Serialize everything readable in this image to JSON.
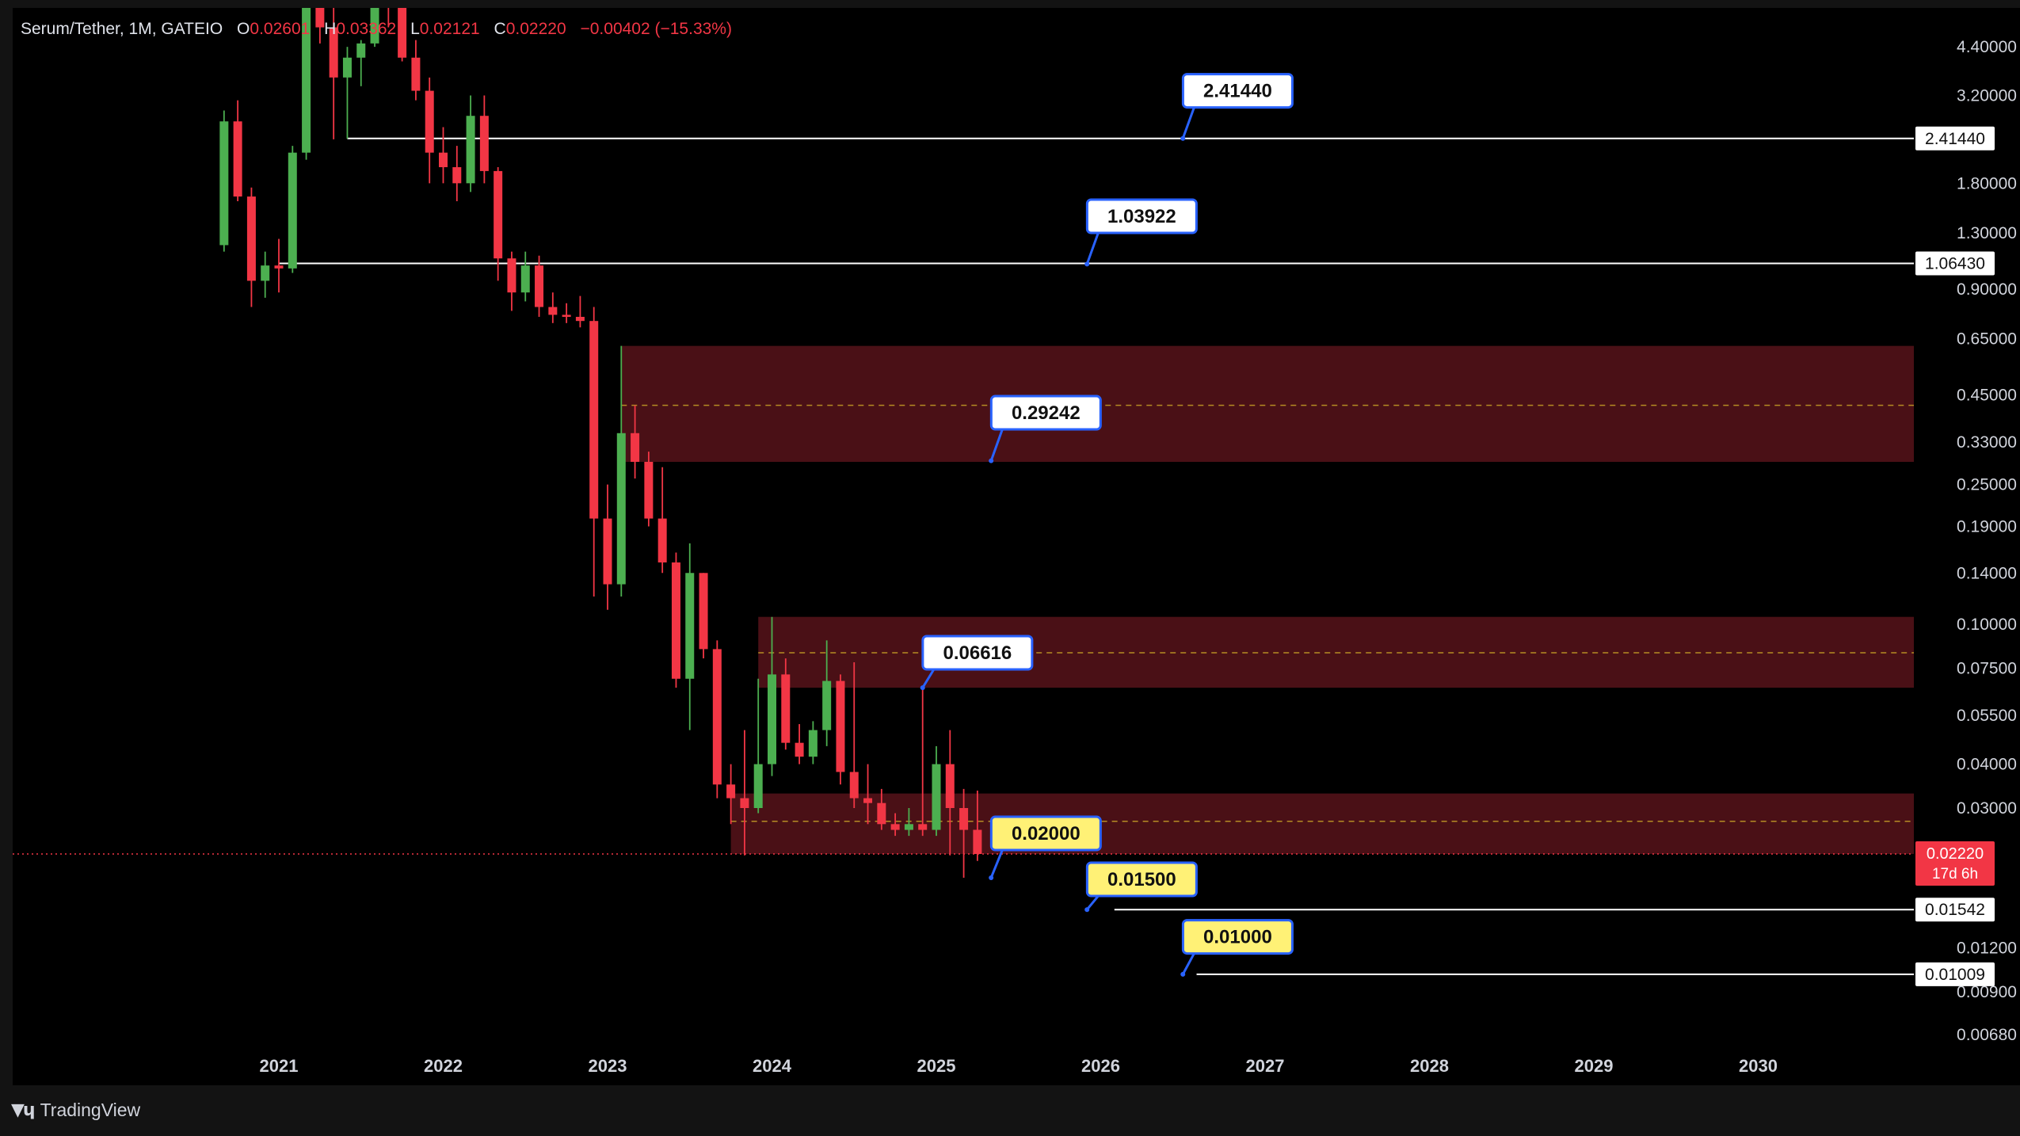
{
  "legend": {
    "symbol": "Serum/Tether, 1M, GATEIO",
    "o_label": "O",
    "o_value": "0.02601",
    "h_label": "H",
    "h_value": "0.03362",
    "l_label": "L",
    "l_value": "0.02121",
    "c_label": "C",
    "c_value": "0.02220",
    "change": "−0.00402 (−15.33%)"
  },
  "brand": {
    "name": "TradingView",
    "logo_icon": "tradingview-logo-icon"
  },
  "colors": {
    "up": "#4caf50",
    "down": "#f23645",
    "zone": "#4a1016",
    "zone_mid": "#c9a227",
    "callout_white": "#ffffff",
    "callout_yellow": "#fff176",
    "callout_border": "#2962ff"
  },
  "chart_data": {
    "type": "candlestick",
    "title": "Serum/Tether, 1M, GATEIO",
    "y_scale": "log",
    "ylim": [
      0.0055,
      4.6
    ],
    "y_ticks": [
      "4.40000",
      "3.20000",
      "1.80000",
      "1.30000",
      "0.90000",
      "0.65000",
      "0.45000",
      "0.33000",
      "0.25000",
      "0.19000",
      "0.14000",
      "0.10000",
      "0.07500",
      "0.05500",
      "0.04000",
      "0.03000",
      "0.01200",
      "0.00900",
      "0.00680"
    ],
    "x_ticks": [
      "2021",
      "2022",
      "2023",
      "2024",
      "2025",
      "2026",
      "2027",
      "2028",
      "2029",
      "2030"
    ],
    "x_range": [
      "2020-09",
      "2030-12"
    ],
    "candles": [
      {
        "t": "2020-09",
        "o": 1.2,
        "h": 2.9,
        "l": 1.15,
        "c": 2.7
      },
      {
        "t": "2020-10",
        "o": 2.7,
        "h": 3.1,
        "l": 1.6,
        "c": 1.65
      },
      {
        "t": "2020-11",
        "o": 1.65,
        "h": 1.75,
        "l": 0.8,
        "c": 0.95
      },
      {
        "t": "2020-12",
        "o": 0.95,
        "h": 1.15,
        "l": 0.85,
        "c": 1.05
      },
      {
        "t": "2021-01",
        "o": 1.05,
        "h": 1.25,
        "l": 0.88,
        "c": 1.03
      },
      {
        "t": "2021-02",
        "o": 1.03,
        "h": 2.3,
        "l": 1.0,
        "c": 2.2
      },
      {
        "t": "2021-03",
        "o": 2.2,
        "h": 6.5,
        "l": 2.1,
        "c": 6.0
      },
      {
        "t": "2021-04",
        "o": 6.0,
        "h": 9.0,
        "l": 4.5,
        "c": 5.0
      },
      {
        "t": "2021-05",
        "o": 5.0,
        "h": 6.0,
        "l": 2.4,
        "c": 3.6
      },
      {
        "t": "2021-06",
        "o": 3.6,
        "h": 4.4,
        "l": 2.41,
        "c": 4.1
      },
      {
        "t": "2021-07",
        "o": 4.1,
        "h": 4.6,
        "l": 3.4,
        "c": 4.5
      },
      {
        "t": "2021-08",
        "o": 4.5,
        "h": 9.0,
        "l": 4.4,
        "c": 7.5
      },
      {
        "t": "2021-09",
        "o": 7.5,
        "h": 9.0,
        "l": 5.0,
        "c": 6.0
      },
      {
        "t": "2021-10",
        "o": 6.0,
        "h": 6.2,
        "l": 4.0,
        "c": 4.1
      },
      {
        "t": "2021-11",
        "o": 4.1,
        "h": 4.6,
        "l": 3.1,
        "c": 3.3
      },
      {
        "t": "2021-12",
        "o": 3.3,
        "h": 3.6,
        "l": 1.8,
        "c": 2.2
      },
      {
        "t": "2022-01",
        "o": 2.2,
        "h": 2.6,
        "l": 1.8,
        "c": 2.0
      },
      {
        "t": "2022-02",
        "o": 2.0,
        "h": 2.3,
        "l": 1.6,
        "c": 1.8
      },
      {
        "t": "2022-03",
        "o": 1.8,
        "h": 3.2,
        "l": 1.7,
        "c": 2.8
      },
      {
        "t": "2022-04",
        "o": 2.8,
        "h": 3.2,
        "l": 1.8,
        "c": 1.95
      },
      {
        "t": "2022-05",
        "o": 1.95,
        "h": 2.0,
        "l": 0.95,
        "c": 1.1
      },
      {
        "t": "2022-06",
        "o": 1.1,
        "h": 1.15,
        "l": 0.78,
        "c": 0.88
      },
      {
        "t": "2022-07",
        "o": 0.88,
        "h": 1.15,
        "l": 0.83,
        "c": 1.05
      },
      {
        "t": "2022-08",
        "o": 1.05,
        "h": 1.12,
        "l": 0.75,
        "c": 0.8
      },
      {
        "t": "2022-09",
        "o": 0.8,
        "h": 0.88,
        "l": 0.72,
        "c": 0.76
      },
      {
        "t": "2022-10",
        "o": 0.76,
        "h": 0.82,
        "l": 0.72,
        "c": 0.75
      },
      {
        "t": "2022-11",
        "o": 0.75,
        "h": 0.86,
        "l": 0.7,
        "c": 0.73
      },
      {
        "t": "2022-12",
        "o": 0.73,
        "h": 0.8,
        "l": 0.12,
        "c": 0.2
      },
      {
        "t": "2023-01",
        "o": 0.2,
        "h": 0.25,
        "l": 0.11,
        "c": 0.13
      },
      {
        "t": "2023-02",
        "o": 0.13,
        "h": 0.62,
        "l": 0.12,
        "c": 0.35
      },
      {
        "t": "2023-03",
        "o": 0.35,
        "h": 0.42,
        "l": 0.26,
        "c": 0.29
      },
      {
        "t": "2023-04",
        "o": 0.29,
        "h": 0.31,
        "l": 0.19,
        "c": 0.2
      },
      {
        "t": "2023-05",
        "o": 0.2,
        "h": 0.28,
        "l": 0.14,
        "c": 0.15
      },
      {
        "t": "2023-06",
        "o": 0.15,
        "h": 0.16,
        "l": 0.066,
        "c": 0.07
      },
      {
        "t": "2023-07",
        "o": 0.07,
        "h": 0.17,
        "l": 0.05,
        "c": 0.14
      },
      {
        "t": "2023-08",
        "o": 0.14,
        "h": 0.14,
        "l": 0.08,
        "c": 0.085
      },
      {
        "t": "2023-09",
        "o": 0.085,
        "h": 0.09,
        "l": 0.032,
        "c": 0.035
      },
      {
        "t": "2023-10",
        "o": 0.035,
        "h": 0.04,
        "l": 0.027,
        "c": 0.032
      },
      {
        "t": "2023-11",
        "o": 0.032,
        "h": 0.05,
        "l": 0.022,
        "c": 0.03
      },
      {
        "t": "2023-12",
        "o": 0.03,
        "h": 0.07,
        "l": 0.029,
        "c": 0.04
      },
      {
        "t": "2024-01",
        "o": 0.04,
        "h": 0.105,
        "l": 0.037,
        "c": 0.072
      },
      {
        "t": "2024-02",
        "o": 0.072,
        "h": 0.08,
        "l": 0.044,
        "c": 0.046
      },
      {
        "t": "2024-03",
        "o": 0.046,
        "h": 0.052,
        "l": 0.04,
        "c": 0.042
      },
      {
        "t": "2024-04",
        "o": 0.042,
        "h": 0.053,
        "l": 0.04,
        "c": 0.05
      },
      {
        "t": "2024-05",
        "o": 0.05,
        "h": 0.09,
        "l": 0.045,
        "c": 0.069
      },
      {
        "t": "2024-06",
        "o": 0.069,
        "h": 0.072,
        "l": 0.035,
        "c": 0.038
      },
      {
        "t": "2024-07",
        "o": 0.038,
        "h": 0.078,
        "l": 0.03,
        "c": 0.032
      },
      {
        "t": "2024-08",
        "o": 0.032,
        "h": 0.04,
        "l": 0.027,
        "c": 0.031
      },
      {
        "t": "2024-09",
        "o": 0.031,
        "h": 0.034,
        "l": 0.026,
        "c": 0.027
      },
      {
        "t": "2024-10",
        "o": 0.027,
        "h": 0.029,
        "l": 0.025,
        "c": 0.026
      },
      {
        "t": "2024-11",
        "o": 0.026,
        "h": 0.03,
        "l": 0.025,
        "c": 0.027
      },
      {
        "t": "2024-12",
        "o": 0.027,
        "h": 0.066,
        "l": 0.025,
        "c": 0.026
      },
      {
        "t": "2025-01",
        "o": 0.026,
        "h": 0.045,
        "l": 0.025,
        "c": 0.04
      },
      {
        "t": "2025-02",
        "o": 0.04,
        "h": 0.05,
        "l": 0.022,
        "c": 0.03
      },
      {
        "t": "2025-03",
        "o": 0.03,
        "h": 0.034,
        "l": 0.019,
        "c": 0.026
      },
      {
        "t": "2025-04",
        "o": 0.02601,
        "h": 0.03362,
        "l": 0.02121,
        "c": 0.0222
      }
    ],
    "zones": [
      {
        "from": "2023-02",
        "top": 0.62,
        "bottom": 0.29,
        "mid": 0.42
      },
      {
        "from": "2023-12",
        "top": 0.105,
        "bottom": 0.066,
        "mid": 0.083
      },
      {
        "from": "2023-10",
        "top": 0.033,
        "bottom": 0.0222,
        "mid": 0.0275
      }
    ],
    "levels": [
      {
        "from": "2021-06",
        "value": 2.4144,
        "axis_label": "2.41440"
      },
      {
        "from": "2021-01",
        "value": 1.0643,
        "axis_label": "1.06430"
      },
      {
        "from": "2026-02",
        "value": 0.01542,
        "axis_label": "0.01542"
      },
      {
        "from": "2026-08",
        "value": 0.01009,
        "axis_label": "0.01009"
      }
    ],
    "current_price": {
      "value": 0.0222,
      "label": "0.02220",
      "countdown": "17d 6h"
    },
    "callouts": [
      {
        "text": "2.41440",
        "style": "white",
        "anchor_t": "2026-07",
        "anchor_v": 2.4144,
        "box_t": "2026-11",
        "box_v": 3.3
      },
      {
        "text": "1.03922",
        "style": "white",
        "anchor_t": "2025-12",
        "anchor_v": 1.06,
        "box_t": "2026-04",
        "box_v": 1.45
      },
      {
        "text": "0.29242",
        "style": "white",
        "anchor_t": "2025-05",
        "anchor_v": 0.292,
        "box_t": "2025-09",
        "box_v": 0.4
      },
      {
        "text": "0.06616",
        "style": "white",
        "anchor_t": "2024-12",
        "anchor_v": 0.066,
        "box_t": "2025-04",
        "box_v": 0.083
      },
      {
        "text": "0.02000",
        "style": "yellow",
        "anchor_t": "2025-05",
        "anchor_v": 0.019,
        "box_t": "2025-09",
        "box_v": 0.0254
      },
      {
        "text": "0.01500",
        "style": "yellow",
        "anchor_t": "2025-12",
        "anchor_v": 0.01542,
        "box_t": "2026-04",
        "box_v": 0.0188
      },
      {
        "text": "0.01000",
        "style": "yellow",
        "anchor_t": "2026-07",
        "anchor_v": 0.01009,
        "box_t": "2026-11",
        "box_v": 0.0129
      }
    ]
  }
}
